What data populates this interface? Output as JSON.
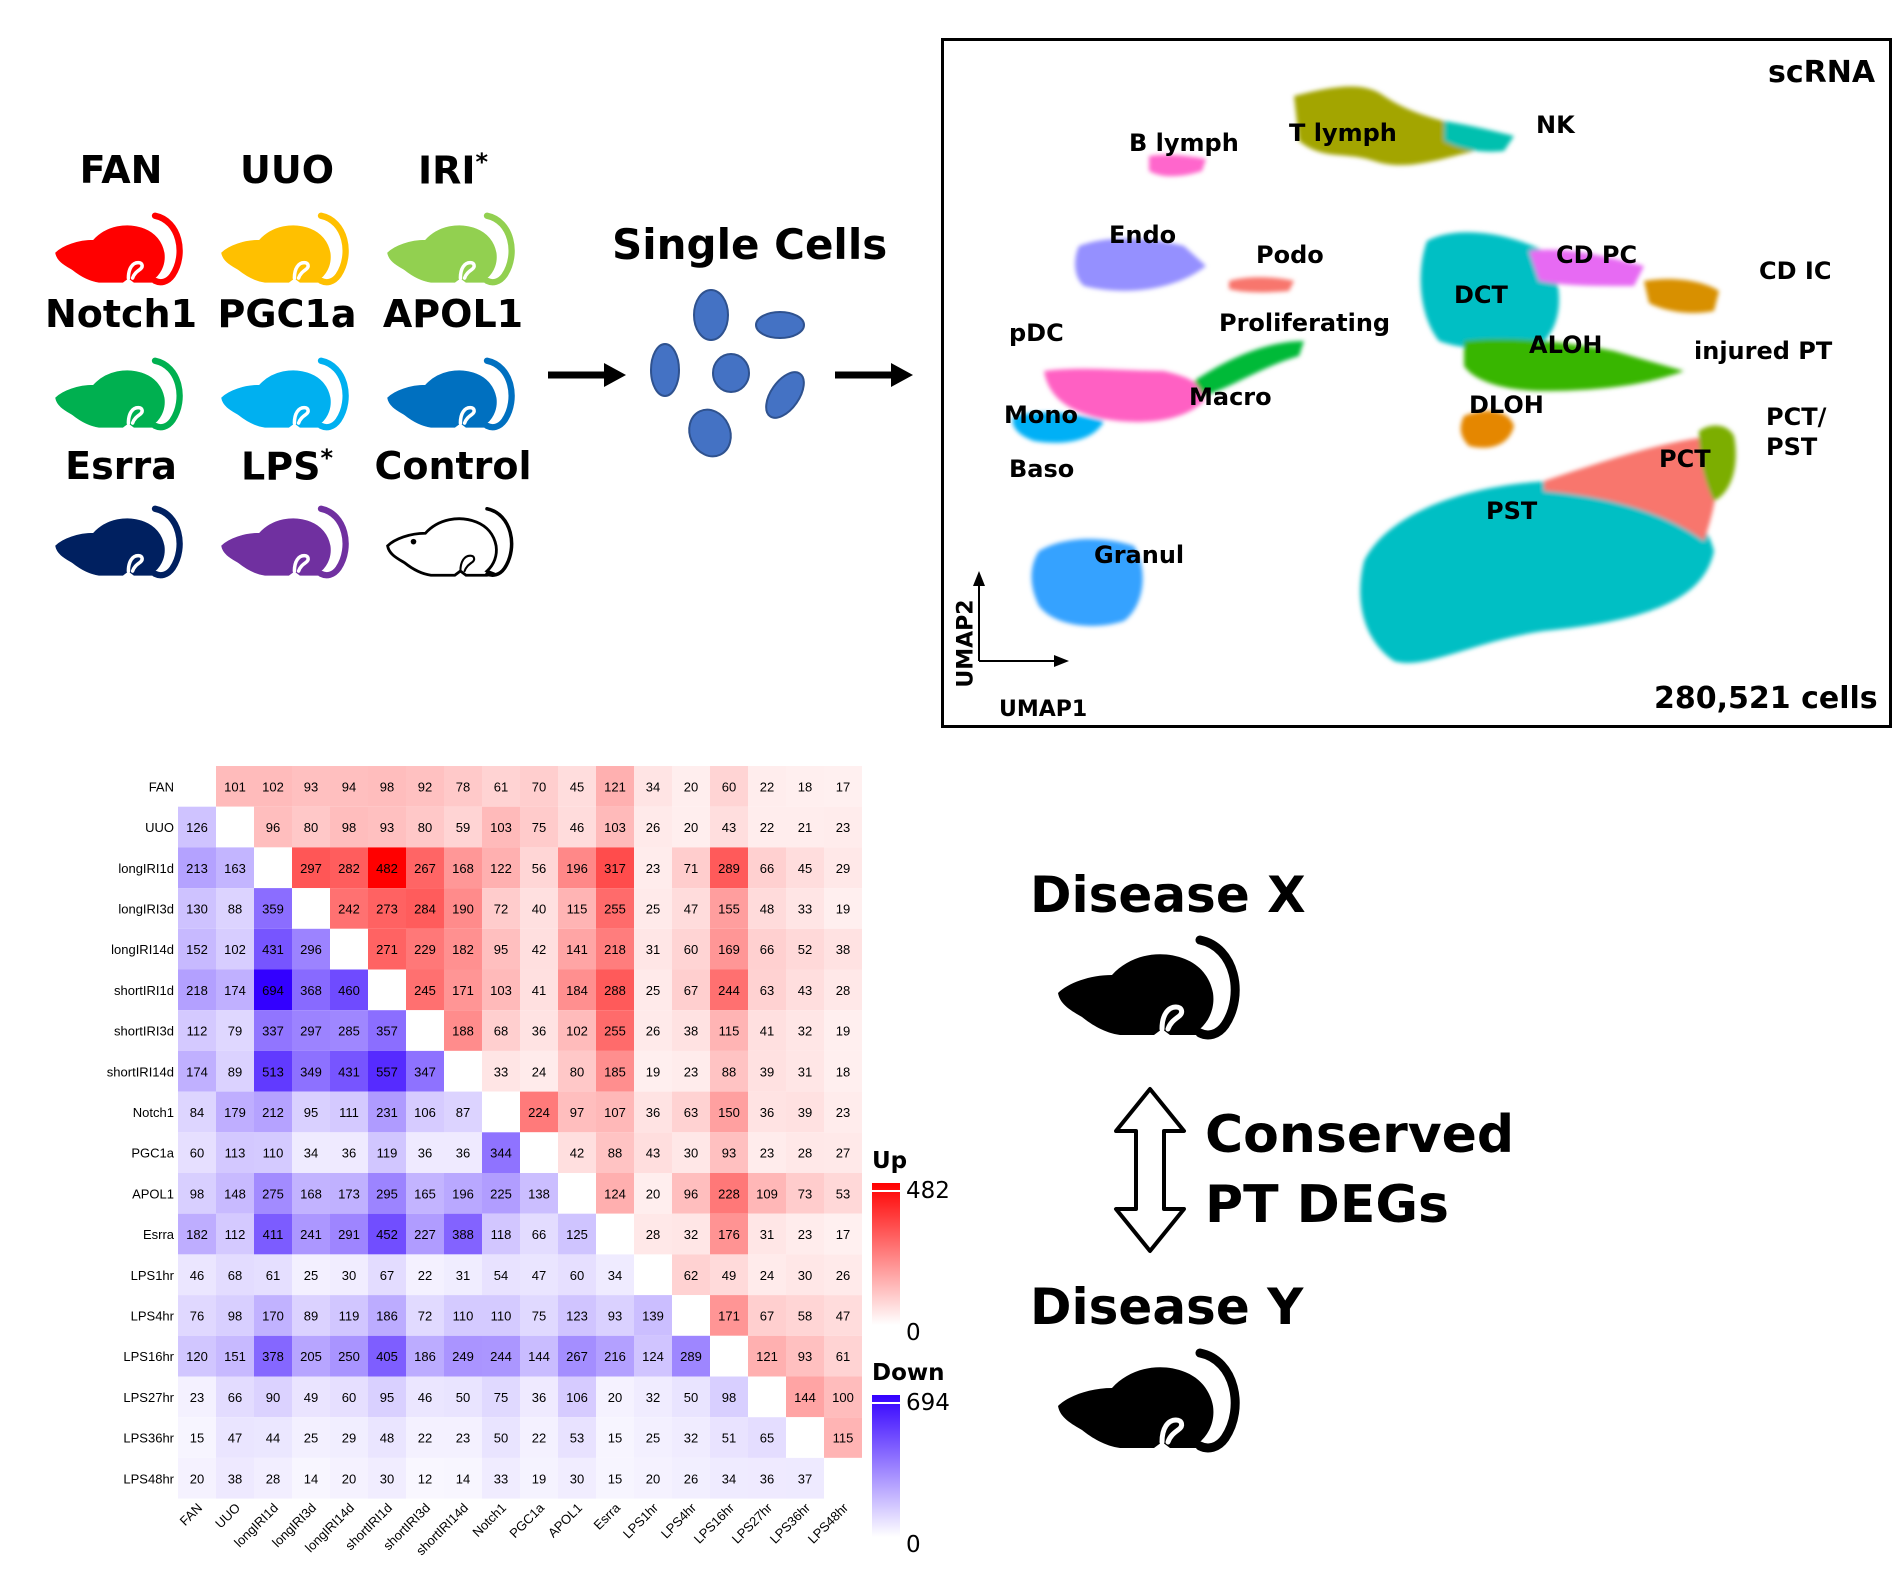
{
  "mice": [
    {
      "label": "FAN",
      "color": "#ff0000",
      "sup": ""
    },
    {
      "label": "UUO",
      "color": "#ffc000",
      "sup": ""
    },
    {
      "label": "IRI",
      "color": "#92d050",
      "sup": "*"
    },
    {
      "label": "Notch1",
      "color": "#00b050",
      "sup": ""
    },
    {
      "label": "PGC1a",
      "color": "#00b0f0",
      "sup": ""
    },
    {
      "label": "APOL1",
      "color": "#0070c0",
      "sup": ""
    },
    {
      "label": "Esrra",
      "color": "#002060",
      "sup": ""
    },
    {
      "label": "LPS",
      "color": "#7030a0",
      "sup": "*"
    },
    {
      "label": "Control",
      "color": "#ffffff",
      "sup": ""
    }
  ],
  "single_cells_label": "Single Cells",
  "umap": {
    "title": "scRNA",
    "cell_count": "280,521 cells",
    "axis_x": "UMAP1",
    "axis_y": "UMAP2",
    "clusters": [
      {
        "name": "B lymph",
        "color": "#ff66cc"
      },
      {
        "name": "T lymph",
        "color": "#a3a500"
      },
      {
        "name": "NK",
        "color": "#00c0af"
      },
      {
        "name": "Endo",
        "color": "#9590ff"
      },
      {
        "name": "Podo",
        "color": "#f8766d"
      },
      {
        "name": "CD PC",
        "color": "#e76bf3"
      },
      {
        "name": "CD IC",
        "color": "#d89000"
      },
      {
        "name": "DCT",
        "color": "#00bfc4"
      },
      {
        "name": "ALOH",
        "color": "#39b600"
      },
      {
        "name": "Proliferating",
        "color": "#00ba38"
      },
      {
        "name": "pDC",
        "color": "#ff62bc"
      },
      {
        "name": "injured PT",
        "color": "#00bf7d"
      },
      {
        "name": "Mono",
        "color": "#00b0f6"
      },
      {
        "name": "Macro",
        "color": "#ff61c3"
      },
      {
        "name": "DLOH",
        "color": "#e58700"
      },
      {
        "name": "PCT/",
        "color": "#7cae00"
      },
      {
        "name": "PST",
        "color": "#7cae00"
      },
      {
        "name": "PCT",
        "color": "#f8766d"
      },
      {
        "name": "Baso",
        "color": "#00a9ff"
      },
      {
        "name": "PST",
        "color": "#00bfc4"
      },
      {
        "name": "Granul",
        "color": "#35a2ff"
      }
    ]
  },
  "disease_x": "Disease X",
  "disease_y": "Disease Y",
  "conserved_line1": "Conserved",
  "conserved_line2": "PT DEGs",
  "chart_data": {
    "type": "heatmap",
    "labels": [
      "FAN",
      "UUO",
      "longIRI1d",
      "longIRI3d",
      "longIRI14d",
      "shortIRI1d",
      "shortIRI3d",
      "shortIRI14d",
      "Notch1",
      "PGC1a",
      "APOL1",
      "Esrra",
      "LPS1hr",
      "LPS4hr",
      "LPS16hr",
      "LPS27hr",
      "LPS36hr",
      "LPS48hr"
    ],
    "matrix": [
      [
        null,
        101,
        102,
        93,
        94,
        98,
        92,
        78,
        61,
        70,
        45,
        121,
        34,
        20,
        60,
        22,
        18,
        17
      ],
      [
        126,
        null,
        96,
        80,
        98,
        93,
        80,
        59,
        103,
        75,
        46,
        103,
        26,
        20,
        43,
        22,
        21,
        23
      ],
      [
        213,
        163,
        null,
        297,
        282,
        482,
        267,
        168,
        122,
        56,
        196,
        317,
        23,
        71,
        289,
        66,
        45,
        29
      ],
      [
        130,
        88,
        359,
        null,
        242,
        273,
        284,
        190,
        72,
        40,
        115,
        255,
        25,
        47,
        155,
        48,
        33,
        19
      ],
      [
        152,
        102,
        431,
        296,
        null,
        271,
        229,
        182,
        95,
        42,
        141,
        218,
        31,
        60,
        169,
        66,
        52,
        38
      ],
      [
        218,
        174,
        694,
        368,
        460,
        null,
        245,
        171,
        103,
        41,
        184,
        288,
        25,
        67,
        244,
        63,
        43,
        28
      ],
      [
        112,
        79,
        337,
        297,
        285,
        357,
        null,
        188,
        68,
        36,
        102,
        255,
        26,
        38,
        115,
        41,
        32,
        19
      ],
      [
        174,
        89,
        513,
        349,
        431,
        557,
        347,
        null,
        33,
        24,
        80,
        185,
        19,
        23,
        88,
        39,
        31,
        18
      ],
      [
        84,
        179,
        212,
        95,
        111,
        231,
        106,
        87,
        null,
        224,
        97,
        107,
        36,
        63,
        150,
        36,
        39,
        23
      ],
      [
        60,
        113,
        110,
        34,
        36,
        119,
        36,
        36,
        344,
        null,
        42,
        88,
        43,
        30,
        93,
        23,
        28,
        27
      ],
      [
        98,
        148,
        275,
        168,
        173,
        295,
        165,
        196,
        225,
        138,
        null,
        124,
        20,
        96,
        228,
        109,
        73,
        53
      ],
      [
        182,
        112,
        411,
        241,
        291,
        452,
        227,
        388,
        118,
        66,
        125,
        null,
        28,
        32,
        176,
        31,
        23,
        17
      ],
      [
        46,
        68,
        61,
        25,
        30,
        67,
        22,
        31,
        54,
        47,
        60,
        34,
        null,
        62,
        49,
        24,
        30,
        26
      ],
      [
        76,
        98,
        170,
        89,
        119,
        186,
        72,
        110,
        110,
        75,
        123,
        93,
        139,
        null,
        171,
        67,
        58,
        47
      ],
      [
        120,
        151,
        378,
        205,
        250,
        405,
        186,
        249,
        244,
        144,
        267,
        216,
        124,
        289,
        null,
        121,
        93,
        61
      ],
      [
        23,
        66,
        90,
        49,
        60,
        95,
        46,
        50,
        75,
        36,
        106,
        20,
        32,
        50,
        98,
        null,
        144,
        100
      ],
      [
        15,
        47,
        44,
        25,
        29,
        48,
        22,
        23,
        50,
        22,
        53,
        15,
        25,
        32,
        51,
        65,
        null,
        115
      ],
      [
        20,
        38,
        28,
        14,
        20,
        30,
        12,
        14,
        33,
        19,
        30,
        15,
        20,
        26,
        34,
        36,
        37,
        null
      ]
    ],
    "upper_triangle": "Up",
    "lower_triangle": "Down",
    "legend": {
      "up_title": "Up",
      "up_max": 482,
      "up_min": 0,
      "down_title": "Down",
      "down_max": 694,
      "down_min": 0
    },
    "colors": {
      "up": "#ff0000",
      "down": "#3300ff",
      "zero": "#ffffff"
    }
  }
}
